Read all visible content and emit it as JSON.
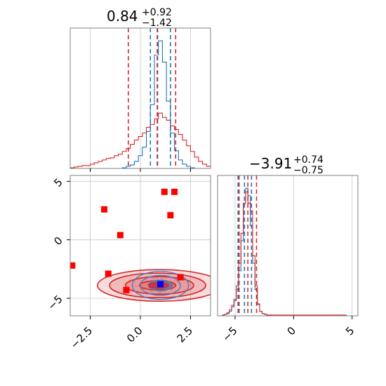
{
  "chart_data": [
    {
      "type": "histogram",
      "panel": "top-left",
      "title": {
        "value": "0.84",
        "plus": "+0.92",
        "minus": "−1.42"
      },
      "xlim": [
        -3.5,
        3.5
      ],
      "grid": true,
      "series": [
        {
          "name": "",
          "color": "#1f77b4",
          "x": [
            -0.8,
            -0.6,
            -0.4,
            -0.2,
            0.0,
            0.2,
            0.4,
            0.6,
            0.8,
            1.0,
            1.2,
            1.4,
            1.6,
            1.8,
            2.0,
            2.2,
            2.4,
            2.6
          ],
          "values": [
            1,
            3,
            5,
            10,
            18,
            30,
            52,
            90,
            160,
            180,
            150,
            95,
            50,
            25,
            12,
            6,
            3,
            1
          ]
        },
        {
          "name": "",
          "color": "#d62728",
          "x": [
            -3.4,
            -3.2,
            -3.0,
            -2.8,
            -2.6,
            -2.4,
            -2.2,
            -2.0,
            -1.8,
            -1.6,
            -1.4,
            -1.2,
            -1.0,
            -0.8,
            -0.6,
            -0.4,
            -0.2,
            0.0,
            0.2,
            0.4,
            0.6,
            0.8,
            1.0,
            1.2,
            1.4,
            1.6,
            1.8,
            2.0,
            2.2,
            2.4,
            2.6,
            2.8,
            3.0,
            3.2,
            3.4
          ],
          "values": [
            1,
            2,
            3,
            4,
            4,
            6,
            8,
            10,
            12,
            14,
            15,
            18,
            20,
            24,
            28,
            34,
            40,
            45,
            50,
            58,
            62,
            70,
            78,
            72,
            68,
            60,
            55,
            48,
            40,
            32,
            24,
            16,
            10,
            6,
            3
          ]
        }
      ],
      "quantile_lines": [
        {
          "color": "#1f77b4",
          "x": [
            0.5,
            0.86,
            1.5
          ]
        },
        {
          "color": "#d62728",
          "x": [
            -0.6,
            0.84,
            1.76
          ]
        }
      ]
    },
    {
      "type": "contour",
      "panel": "bottom-left",
      "xlim": [
        -3.5,
        3.5
      ],
      "ylim": [
        -6.5,
        5.5
      ],
      "xticks": [
        -2.5,
        0.0,
        2.5
      ],
      "xtick_labels": [
        "−2.5",
        "0.0",
        "2.5"
      ],
      "yticks": [
        -5,
        0,
        5
      ],
      "ytick_labels": [
        "−5",
        "0",
        "5"
      ],
      "grid": true,
      "red_square_markers": [
        {
          "x": 1.2,
          "y": 4.1
        },
        {
          "x": 1.7,
          "y": 4.1
        },
        {
          "x": -1.8,
          "y": 2.6
        },
        {
          "x": 1.5,
          "y": 2.1
        },
        {
          "x": -1.0,
          "y": 0.4
        },
        {
          "x": -3.4,
          "y": -2.2
        },
        {
          "x": -1.6,
          "y": -2.9
        },
        {
          "x": -0.7,
          "y": -4.3
        },
        {
          "x": 2.0,
          "y": -3.2
        }
      ],
      "blue_square_marker": {
        "x": 1.0,
        "y": -3.8
      },
      "red_contours": {
        "cx": 0.9,
        "cy": -3.9,
        "rx": [
          3.1,
          2.4,
          1.7,
          0.9
        ],
        "ry": [
          1.35,
          1.05,
          0.75,
          0.4
        ]
      },
      "blue_contours": {
        "cx": 1.0,
        "cy": -3.9,
        "rx": [
          1.4,
          1.0,
          0.6
        ],
        "ry": [
          1.2,
          0.85,
          0.45
        ]
      }
    },
    {
      "type": "histogram",
      "panel": "bottom-right",
      "title": {
        "value": "−3.91",
        "plus": "+0.74",
        "minus": "−0.75"
      },
      "xlim": [
        -6.5,
        5.5
      ],
      "xticks": [
        -5,
        0,
        5
      ],
      "xtick_labels": [
        "−5",
        "0",
        "5"
      ],
      "grid": true,
      "series": [
        {
          "name": "",
          "color": "#1f77b4",
          "x": [
            -6.0,
            -5.8,
            -5.6,
            -5.4,
            -5.2,
            -5.0,
            -4.8,
            -4.6,
            -4.4,
            -4.2,
            -4.0,
            -3.8,
            -3.6,
            -3.4,
            -3.2,
            -3.0,
            -2.8,
            -2.6,
            -2.4,
            -2.2,
            -2.0
          ],
          "values": [
            1,
            2,
            3,
            6,
            12,
            20,
            35,
            60,
            100,
            150,
            170,
            160,
            120,
            70,
            35,
            15,
            6,
            3,
            2,
            1,
            1
          ]
        },
        {
          "name": "",
          "color": "#d62728",
          "x": [
            -6.0,
            -5.8,
            -5.6,
            -5.4,
            -5.2,
            -5.0,
            -4.8,
            -4.6,
            -4.4,
            -4.2,
            -4.0,
            -3.8,
            -3.6,
            -3.4,
            -3.2,
            -3.0,
            -2.8,
            -2.6,
            -2.4,
            -2.2,
            -2.0,
            0.0,
            4.0,
            4.4
          ],
          "values": [
            1,
            2,
            4,
            8,
            14,
            22,
            40,
            70,
            110,
            150,
            165,
            150,
            140,
            80,
            40,
            16,
            6,
            3,
            2,
            1,
            1,
            1,
            1,
            1
          ]
        }
      ],
      "quantile_lines": [
        {
          "color": "#1f77b4",
          "x": [
            -4.75,
            -4.2,
            -3.6
          ]
        },
        {
          "color": "#d62728",
          "x": [
            -4.66,
            -3.91,
            -3.17
          ]
        }
      ]
    }
  ]
}
